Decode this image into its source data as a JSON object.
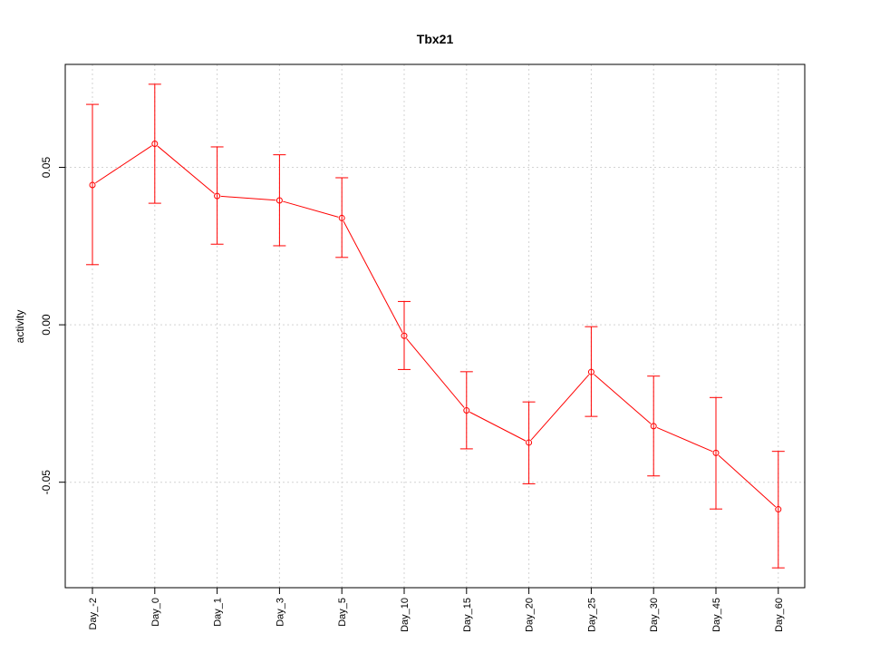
{
  "chart_data": {
    "type": "line",
    "title": "Tbx21",
    "xlabel": "",
    "ylabel": "activity",
    "categories": [
      "Day_-2",
      "Day_0",
      "Day_1",
      "Day_3",
      "Day_5",
      "Day_10",
      "Day_15",
      "Day_20",
      "Day_25",
      "Day_30",
      "Day_45",
      "Day_60"
    ],
    "series": [
      {
        "values": [
          0.0444,
          0.0575,
          0.0409,
          0.0395,
          0.0339,
          -0.0035,
          -0.0272,
          -0.0374,
          -0.015,
          -0.0322,
          -0.0407,
          -0.0586
        ],
        "upper": [
          0.07,
          0.0764,
          0.0565,
          0.054,
          0.0467,
          0.0074,
          -0.0149,
          -0.0245,
          -0.0006,
          -0.0163,
          -0.0231,
          -0.0402
        ],
        "lower": [
          0.0191,
          0.0386,
          0.0256,
          0.0251,
          0.0214,
          -0.0142,
          -0.0394,
          -0.0505,
          -0.0291,
          -0.048,
          -0.0585,
          -0.0772
        ]
      }
    ],
    "yticks": [
      -0.05,
      0.0,
      0.05
    ],
    "ytick_labels": [
      "-0.05",
      "0.00",
      "0.05"
    ],
    "ylim": [
      -0.0835,
      0.0827
    ],
    "grid": true,
    "colors": {
      "series": "#ff0000",
      "grid": "#d3d3d3",
      "axis": "#000000"
    }
  }
}
